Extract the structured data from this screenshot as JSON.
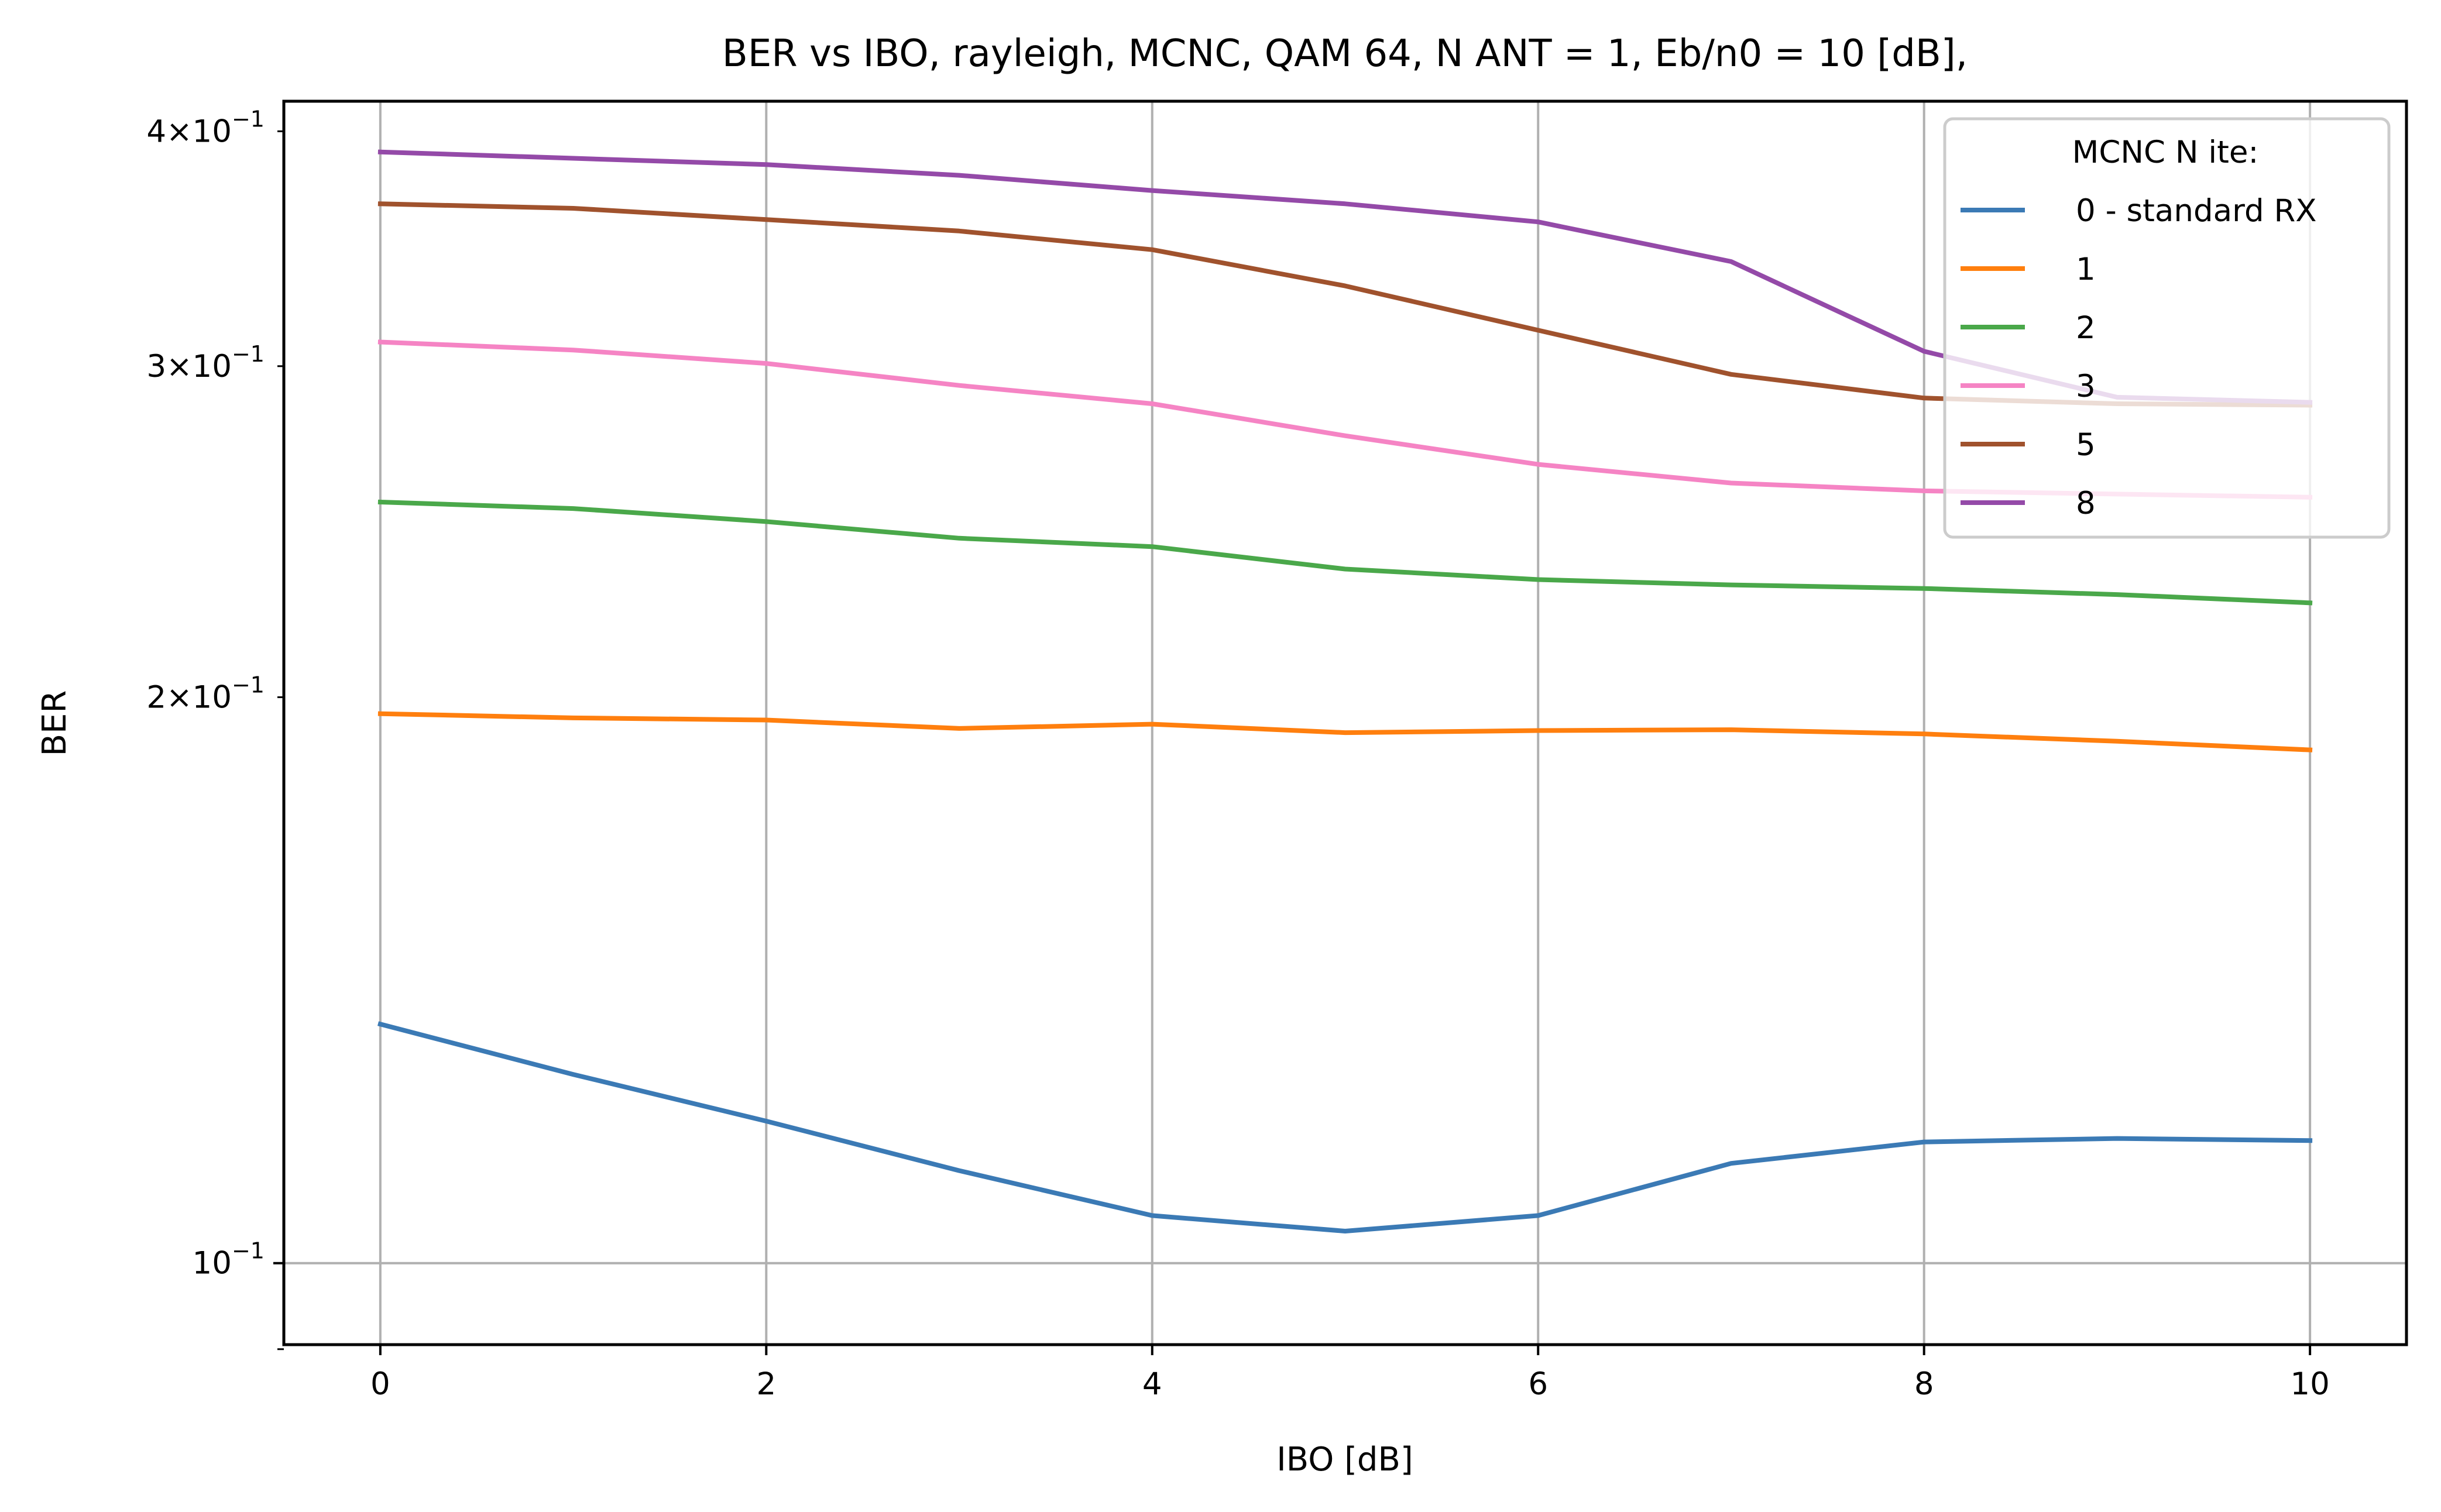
{
  "chart_data": {
    "type": "line",
    "title": "BER vs IBO, rayleigh, MCNC, QAM 64, N ANT = 1, Eb/n0 = 10 [dB],",
    "xlabel": "IBO [dB]",
    "ylabel": "BER",
    "x": [
      0,
      1,
      2,
      3,
      4,
      5,
      6,
      7,
      8,
      9,
      10
    ],
    "xlim": [
      -0.5,
      10.5
    ],
    "ylim": [
      0.0905,
      0.415
    ],
    "yscale": "log",
    "grid": true,
    "x_ticks": [
      0,
      2,
      4,
      6,
      8,
      10
    ],
    "x_tick_labels": [
      "0",
      "2",
      "4",
      "6",
      "8",
      "10"
    ],
    "y_major_ticks": [
      0.1
    ],
    "y_major_tick_labels": [
      {
        "base": "10",
        "exp": "−1"
      }
    ],
    "y_minor_ticks": [
      0.2,
      0.3,
      0.4
    ],
    "y_minor_tick_labels": [
      {
        "mantissa": "2",
        "base": "10",
        "exp": "−1"
      },
      {
        "mantissa": "3",
        "base": "10",
        "exp": "−1"
      },
      {
        "mantissa": "4",
        "base": "10",
        "exp": "−1"
      }
    ],
    "y_unlabeled_minor_ticks": [
      0.09
    ],
    "legend": {
      "title": "MCNC N ite:",
      "placement": "upper right"
    },
    "series": [
      {
        "name": "0 - standard RX",
        "color": "#3b7ab5",
        "values": [
          0.134,
          0.126,
          0.119,
          0.112,
          0.106,
          0.104,
          0.106,
          0.113,
          0.116,
          0.1165,
          0.1162
        ]
      },
      {
        "name": "1",
        "color": "#ff7f0e",
        "values": [
          0.196,
          0.195,
          0.1945,
          0.1925,
          0.1935,
          0.1915,
          0.192,
          0.1922,
          0.1912,
          0.1895,
          0.1875
        ]
      },
      {
        "name": "2",
        "color": "#4aa84a",
        "values": [
          0.254,
          0.252,
          0.248,
          0.243,
          0.2405,
          0.234,
          0.231,
          0.2295,
          0.2285,
          0.2268,
          0.2245
        ]
      },
      {
        "name": "3",
        "color": "#f584c4",
        "values": [
          0.309,
          0.306,
          0.301,
          0.293,
          0.2865,
          0.2755,
          0.266,
          0.26,
          0.2575,
          0.2565,
          0.2555
        ]
      },
      {
        "name": "5",
        "color": "#a0522d",
        "values": [
          0.366,
          0.364,
          0.359,
          0.354,
          0.346,
          0.331,
          0.3135,
          0.297,
          0.2885,
          0.2865,
          0.286
        ]
      },
      {
        "name": "8",
        "color": "#944aa8",
        "values": [
          0.39,
          0.387,
          0.384,
          0.379,
          0.372,
          0.366,
          0.358,
          0.341,
          0.3055,
          0.2888,
          0.287
        ]
      }
    ]
  }
}
